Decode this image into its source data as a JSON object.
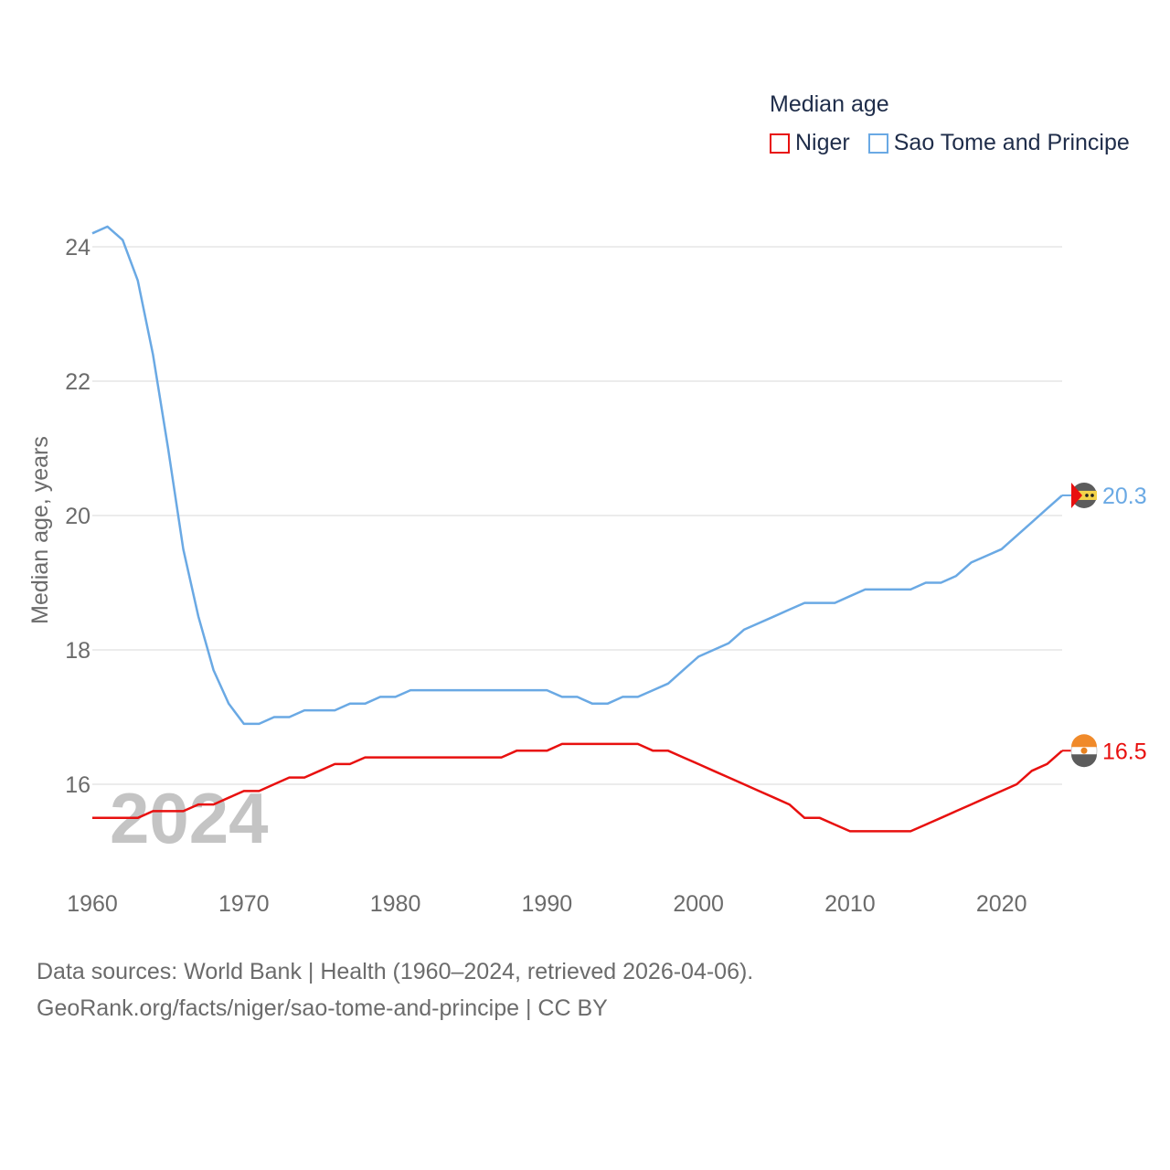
{
  "legend": {
    "title": "Median age",
    "items": [
      {
        "label": "Niger",
        "color": "#e8100f"
      },
      {
        "label": "Sao Tome and Principe",
        "color": "#6aa9e4"
      }
    ]
  },
  "year_label": "2024",
  "footer": {
    "line1": "Data sources: World Bank | Health (1960–2024, retrieved 2026-04-06).",
    "line2": "GeoRank.org/facts/niger/sao-tome-and-principe | CC BY"
  },
  "chart_data": {
    "type": "line",
    "title": "Median age",
    "xlabel": "",
    "ylabel": "Median age, years",
    "xlim": [
      1960,
      2024
    ],
    "ylim": [
      15.2,
      24.7
    ],
    "xticks": [
      1960,
      1970,
      1980,
      1990,
      2000,
      2010,
      2020
    ],
    "yticks": [
      16,
      18,
      20,
      22,
      24
    ],
    "grid": true,
    "legend_position": "top-right",
    "x": [
      1960,
      1961,
      1962,
      1963,
      1964,
      1965,
      1966,
      1967,
      1968,
      1969,
      1970,
      1971,
      1972,
      1973,
      1974,
      1975,
      1976,
      1977,
      1978,
      1979,
      1980,
      1981,
      1982,
      1983,
      1984,
      1985,
      1986,
      1987,
      1988,
      1989,
      1990,
      1991,
      1992,
      1993,
      1994,
      1995,
      1996,
      1997,
      1998,
      1999,
      2000,
      2001,
      2002,
      2003,
      2004,
      2005,
      2006,
      2007,
      2008,
      2009,
      2010,
      2011,
      2012,
      2013,
      2014,
      2015,
      2016,
      2017,
      2018,
      2019,
      2020,
      2021,
      2022,
      2023,
      2024
    ],
    "series": [
      {
        "name": "Niger",
        "color": "#e8100f",
        "end_label": "16.5",
        "values": [
          15.5,
          15.5,
          15.5,
          15.5,
          15.6,
          15.6,
          15.6,
          15.7,
          15.7,
          15.8,
          15.9,
          15.9,
          16.0,
          16.1,
          16.1,
          16.2,
          16.3,
          16.3,
          16.4,
          16.4,
          16.4,
          16.4,
          16.4,
          16.4,
          16.4,
          16.4,
          16.4,
          16.4,
          16.5,
          16.5,
          16.5,
          16.6,
          16.6,
          16.6,
          16.6,
          16.6,
          16.6,
          16.5,
          16.5,
          16.4,
          16.3,
          16.2,
          16.1,
          16.0,
          15.9,
          15.8,
          15.7,
          15.5,
          15.5,
          15.4,
          15.3,
          15.3,
          15.3,
          15.3,
          15.3,
          15.4,
          15.5,
          15.6,
          15.7,
          15.8,
          15.9,
          16.0,
          16.2,
          16.3,
          16.5
        ]
      },
      {
        "name": "Sao Tome and Principe",
        "color": "#6aa9e4",
        "end_label": "20.3",
        "values": [
          24.2,
          24.3,
          24.1,
          23.5,
          22.4,
          21.0,
          19.5,
          18.5,
          17.7,
          17.2,
          16.9,
          16.9,
          17.0,
          17.0,
          17.1,
          17.1,
          17.1,
          17.2,
          17.2,
          17.3,
          17.3,
          17.4,
          17.4,
          17.4,
          17.4,
          17.4,
          17.4,
          17.4,
          17.4,
          17.4,
          17.4,
          17.3,
          17.3,
          17.2,
          17.2,
          17.3,
          17.3,
          17.4,
          17.5,
          17.7,
          17.9,
          18.0,
          18.1,
          18.3,
          18.4,
          18.5,
          18.6,
          18.7,
          18.7,
          18.7,
          18.8,
          18.9,
          18.9,
          18.9,
          18.9,
          19.0,
          19.0,
          19.1,
          19.3,
          19.4,
          19.5,
          19.7,
          19.9,
          20.1,
          20.3
        ]
      }
    ]
  }
}
